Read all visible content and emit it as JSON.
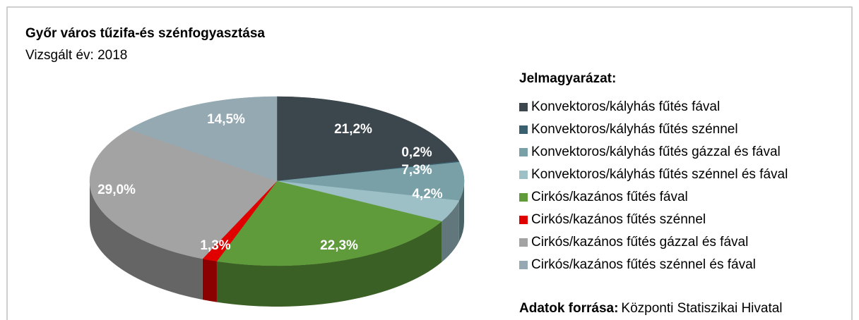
{
  "chart_data": {
    "type": "pie3d",
    "title": "Győr város tűzifa-és szénfogyasztása",
    "subtitle": "Vizsgált év: 2018",
    "legend_title": "Jelmagyarázat:",
    "source_label": "Adatok forrása:",
    "source": "Központi Statiszikai Hivatal",
    "legend": "right",
    "categories": [
      "Konvektoros/kályhás fűtés fával",
      "Konvektoros/kályhás fűtés szénnel",
      "Konvektoros/kályhás fűtés gázzal és fával",
      "Konvektoros/kályhás fűtés szénnel és fával",
      "Cirkós/kazános fűtés fával",
      "Cirkós/kazános fűtés szénnel",
      "Cirkós/kazános fűtés gázzal és fával",
      "Cirkós/kazános fűtés szénnel és fával"
    ],
    "values": [
      21.2,
      0.2,
      7.3,
      4.2,
      22.3,
      1.3,
      29.0,
      14.5
    ],
    "value_labels": [
      "21,2%",
      "0,2%",
      "7,3%",
      "4,2%",
      "22,3%",
      "1,3%",
      "29,0%",
      "14,5%"
    ],
    "colors": [
      "#3b474d",
      "#3a5f6e",
      "#78a0a6",
      "#9cc0c6",
      "#5f9b3b",
      "#e00000",
      "#a3a3a3",
      "#94a9b1"
    ]
  }
}
